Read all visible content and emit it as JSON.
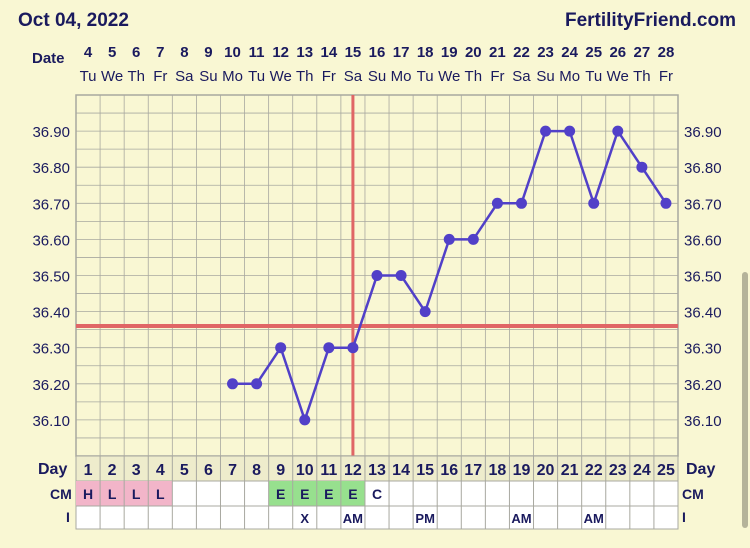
{
  "header": {
    "date": "Oct 04, 2022",
    "brand": "FertilityFriend.com"
  },
  "labels": {
    "date_row": "Date",
    "day_row": "Day",
    "cm_row": "CM",
    "i_row": "I"
  },
  "colors": {
    "background": "#f9f7d3",
    "grid": "#a8a8a0",
    "line": "#5140c8",
    "coverline": "#e06666",
    "cm_pink": "#f2b5c9",
    "cm_green": "#97e08e",
    "text": "#1a1a5e"
  },
  "chart_data": {
    "type": "line",
    "cycle_days": [
      "1",
      "2",
      "3",
      "4",
      "5",
      "6",
      "7",
      "8",
      "9",
      "10",
      "11",
      "12",
      "13",
      "14",
      "15",
      "16",
      "17",
      "18",
      "19",
      "20",
      "21",
      "22",
      "23",
      "24",
      "25"
    ],
    "dates": [
      "4",
      "5",
      "6",
      "7",
      "8",
      "9",
      "10",
      "11",
      "12",
      "13",
      "14",
      "15",
      "16",
      "17",
      "18",
      "19",
      "20",
      "21",
      "22",
      "23",
      "24",
      "25",
      "26",
      "27",
      "28"
    ],
    "weekdays": [
      "Tu",
      "We",
      "Th",
      "Fr",
      "Sa",
      "Su",
      "Mo",
      "Tu",
      "We",
      "Th",
      "Fr",
      "Sa",
      "Su",
      "Mo",
      "Tu",
      "We",
      "Th",
      "Fr",
      "Sa",
      "Su",
      "Mo",
      "Tu",
      "We",
      "Th",
      "Fr"
    ],
    "temperatures": [
      null,
      null,
      null,
      null,
      null,
      null,
      36.2,
      36.2,
      36.3,
      36.1,
      36.3,
      36.3,
      36.5,
      36.5,
      36.4,
      36.6,
      36.6,
      36.7,
      36.7,
      36.9,
      36.9,
      36.7,
      36.9,
      36.8,
      36.7
    ],
    "y_ticks": [
      "36.10",
      "36.20",
      "36.30",
      "36.40",
      "36.50",
      "36.60",
      "36.70",
      "36.80",
      "36.90"
    ],
    "ylim": [
      36.0,
      37.0
    ],
    "coverline": 36.36,
    "ovulation_day": "12",
    "cm": [
      "H",
      "L",
      "L",
      "L",
      "",
      "",
      "",
      "",
      "E",
      "E",
      "E",
      "E",
      "C",
      "",
      "",
      "",
      "",
      "",
      "",
      "",
      "",
      "",
      "",
      "",
      ""
    ],
    "intercourse": [
      "",
      "",
      "",
      "",
      "",
      "",
      "",
      "",
      "",
      "X",
      "",
      "AM",
      "",
      "",
      "PM",
      "",
      "",
      "",
      "AM",
      "",
      "",
      "AM",
      "",
      "",
      ""
    ]
  }
}
